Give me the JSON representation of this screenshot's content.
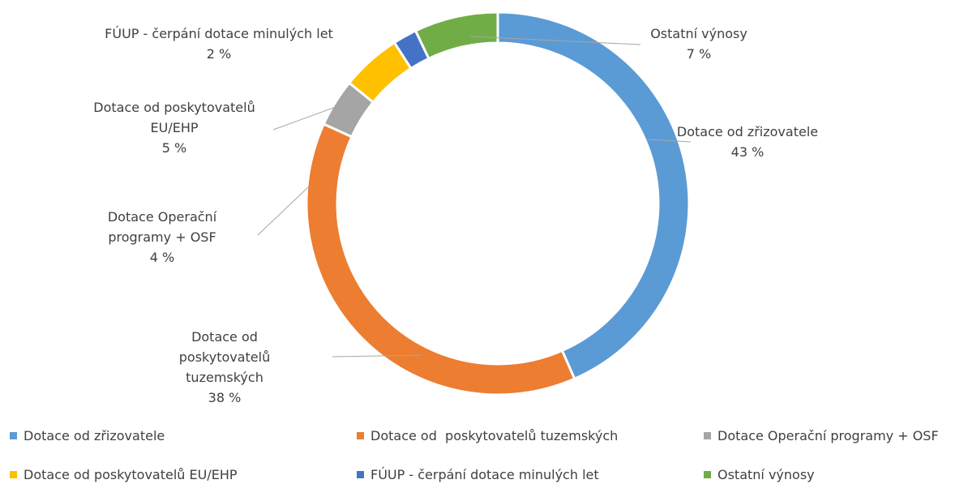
{
  "chart_data": {
    "type": "donut",
    "categories": [
      "Dotace od zřizovatele",
      "Dotace od  poskytovatelů tuzemských",
      "Dotace Operační programy + OSF",
      "Dotace od poskytovatelů EU/EHP",
      "FÚUP - čerpání dotace minulých let",
      "Ostatní výnosy"
    ],
    "values": [
      43,
      38,
      4,
      5,
      2,
      7
    ],
    "value_labels": [
      "43 %",
      "38 %",
      "4 %",
      "5 %",
      "2 %",
      "7 %"
    ],
    "colors": [
      "#5b9bd5",
      "#ed7d31",
      "#a5a5a5",
      "#ffc000",
      "#4472c4",
      "#70ad47"
    ],
    "legend": "bottom"
  }
}
